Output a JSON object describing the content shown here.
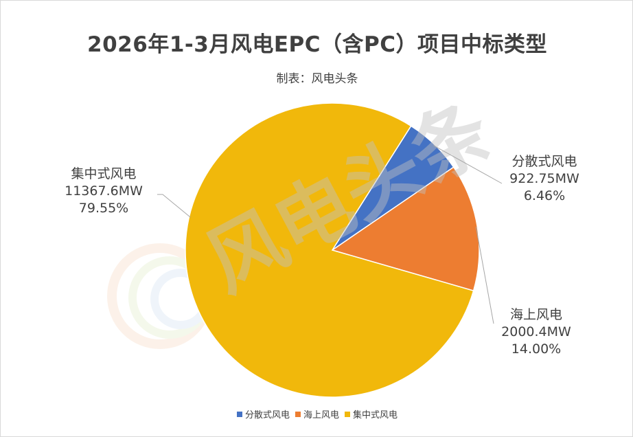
{
  "chart_data": {
    "type": "pie",
    "title": "2026年1-3月风电EPC（含PC）项目中标类型",
    "subtitle": "制表：风电头条",
    "unit": "MW",
    "series": [
      {
        "name": "分散式风电",
        "value": 922.75,
        "value_label": "922.75MW",
        "percent_label": "6.46%",
        "color": "#4472c4"
      },
      {
        "name": "海上风电",
        "value": 2000.4,
        "value_label": "2000.4MW",
        "percent_label": "14.00%",
        "color": "#ed7d31"
      },
      {
        "name": "集中式风电",
        "value": 11367.6,
        "value_label": "11367.6MW",
        "percent_label": "79.55%",
        "color": "#f1b80b"
      }
    ],
    "legend_position": "bottom"
  },
  "watermark": "风电头条"
}
